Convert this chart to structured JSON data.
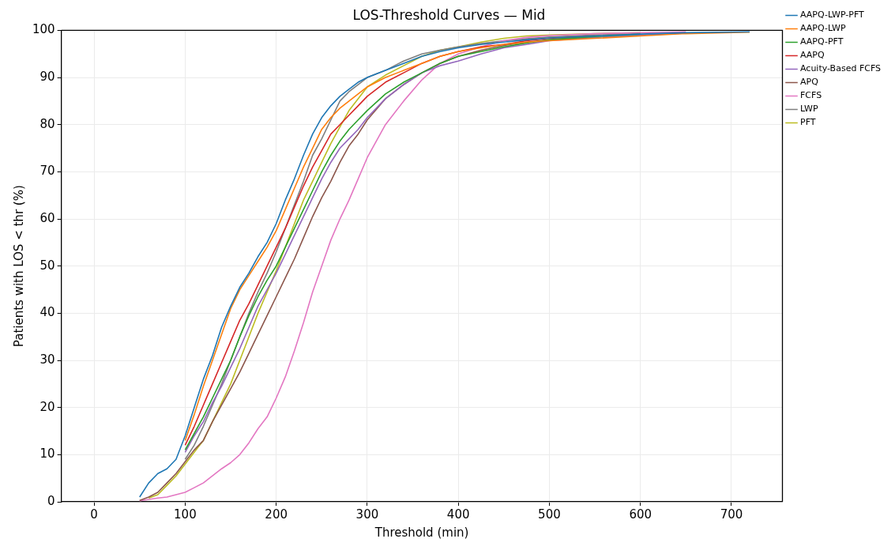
{
  "chart_data": {
    "type": "line",
    "title": "LOS-Threshold Curves — Mid",
    "xlabel": "Threshold (min)",
    "ylabel": "Patients with LOS < thr (%)",
    "x": [
      50,
      60,
      70,
      80,
      90,
      100,
      110,
      120,
      130,
      140,
      150,
      160,
      170,
      180,
      190,
      200,
      210,
      220,
      230,
      240,
      250,
      260,
      270,
      280,
      290,
      300,
      320,
      340,
      360,
      380,
      400,
      425,
      450,
      475,
      500,
      550,
      600,
      650,
      720
    ],
    "series": [
      {
        "name": "AAPQ-LWP-PFT",
        "color": "#1f77b4",
        "values": [
          1,
          4,
          6,
          7,
          9,
          14,
          20,
          26,
          31,
          37,
          41.5,
          45.5,
          48.5,
          52,
          55,
          59,
          64,
          68.5,
          73.5,
          78,
          81.5,
          84,
          86,
          87.5,
          89,
          90,
          91.5,
          93,
          94.5,
          95.5,
          96.3,
          97,
          97.5,
          98,
          98.4,
          98.8,
          99.2,
          99.5,
          99.7
        ]
      },
      {
        "name": "AAPQ-LWP",
        "color": "#ff7f0e",
        "values": [
          null,
          null,
          null,
          null,
          null,
          13,
          18.5,
          24.5,
          30,
          35.5,
          41,
          45,
          48,
          51,
          54,
          57.5,
          62,
          66.5,
          71,
          75,
          79,
          81.5,
          83.5,
          85,
          86.5,
          88,
          90,
          91.5,
          93,
          94.5,
          95.5,
          96.3,
          97,
          97.5,
          97.8,
          98.3,
          98.8,
          99.3,
          99.6
        ]
      },
      {
        "name": "AAPQ-PFT",
        "color": "#2ca02c",
        "values": [
          null,
          null,
          null,
          null,
          null,
          11,
          14.5,
          18,
          22,
          26,
          30,
          35,
          39.5,
          43.5,
          47,
          50,
          54,
          58,
          62,
          66,
          70,
          73.5,
          76.5,
          79,
          81,
          83,
          86.5,
          89,
          91,
          93,
          94.5,
          95.5,
          96.5,
          97.3,
          98,
          98.7,
          99.2,
          null,
          null
        ]
      },
      {
        "name": "AAPQ",
        "color": "#d62728",
        "values": [
          null,
          null,
          null,
          null,
          null,
          12,
          16,
          20.5,
          25,
          29.5,
          34,
          38.5,
          42,
          46,
          50,
          54,
          58,
          62.5,
          67,
          71,
          74.5,
          78,
          80,
          82,
          84,
          86,
          89,
          91,
          93,
          94.5,
          95.5,
          96.5,
          97,
          97.8,
          98.3,
          98.8,
          null,
          null,
          null
        ]
      },
      {
        "name": "Acuity-Based FCFS",
        "color": "#9467bd",
        "values": [
          null,
          null,
          null,
          null,
          null,
          10.5,
          14,
          17,
          21,
          24.5,
          28.5,
          32.5,
          37,
          41.5,
          45,
          48.5,
          52.5,
          56.5,
          60.5,
          64.5,
          68.5,
          72,
          75,
          77,
          79,
          81.5,
          85.5,
          88.5,
          91,
          92.5,
          93.5,
          95,
          96.3,
          97,
          97.8,
          98.5,
          99,
          99.4,
          null
        ]
      },
      {
        "name": "APQ",
        "color": "#8c564b",
        "values": [
          0.3,
          1,
          2,
          4,
          6,
          8.5,
          11,
          13,
          17,
          20.5,
          24,
          27.5,
          31.5,
          35.5,
          39.5,
          43.5,
          47.5,
          51.5,
          56,
          60.5,
          64.5,
          68,
          72,
          75.5,
          78,
          81,
          85.5,
          88.5,
          91,
          93,
          94.5,
          95.8,
          96.8,
          97.5,
          98,
          98.7,
          null,
          null,
          null
        ]
      },
      {
        "name": "FCFS",
        "color": "#e377c2",
        "values": [
          0.2,
          0.5,
          0.8,
          1,
          1.5,
          2,
          3,
          4,
          5.5,
          7,
          8.3,
          10,
          12.5,
          15.5,
          18,
          22,
          26.5,
          32,
          38,
          44.5,
          50,
          55.5,
          60,
          64,
          68.5,
          73,
          80,
          85,
          89.5,
          93,
          95,
          96.5,
          97.8,
          98.5,
          98.9,
          99.3,
          99.5,
          99.7,
          null
        ]
      },
      {
        "name": "LWP",
        "color": "#7f7f7f",
        "values": [
          null,
          null,
          null,
          null,
          null,
          9,
          12,
          16,
          20.5,
          25,
          30,
          35,
          40,
          44.5,
          48.5,
          53,
          58,
          63,
          68,
          73.5,
          77,
          81,
          85,
          87,
          88.5,
          90,
          91.5,
          93.5,
          95,
          95.8,
          96.5,
          97.2,
          97.8,
          98.2,
          98.6,
          99,
          99.3,
          null,
          null
        ]
      },
      {
        "name": "PFT",
        "color": "#bcbd22",
        "values": [
          null,
          0.8,
          1.5,
          3.5,
          5.5,
          8,
          10.5,
          13,
          17,
          21,
          25,
          30,
          35,
          40,
          44.5,
          49,
          54,
          59,
          64,
          68,
          72,
          76,
          79.5,
          83,
          85.5,
          88,
          90.5,
          92.5,
          94.5,
          95.8,
          96.5,
          97.5,
          98.3,
          98.8,
          99,
          99.3,
          99.5,
          null,
          null
        ]
      }
    ],
    "xlim": [
      -36,
      756
    ],
    "xticks": [
      0,
      100,
      200,
      300,
      400,
      500,
      600,
      700
    ],
    "ylim": [
      0,
      100
    ],
    "yticks": [
      0,
      10,
      20,
      30,
      40,
      50,
      60,
      70,
      80,
      90,
      100
    ],
    "grid": true,
    "legend": "top right",
    "marker": "none",
    "line_style": "solid"
  }
}
